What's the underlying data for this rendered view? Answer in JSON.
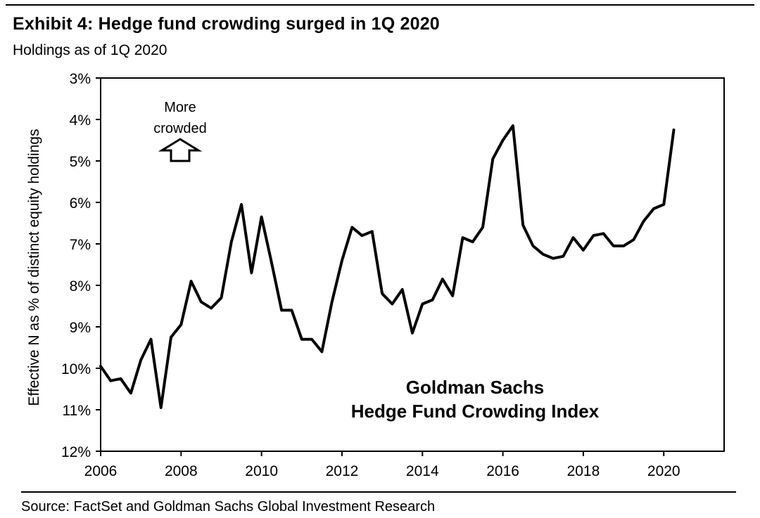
{
  "header": {
    "title": "Exhibit 4: Hedge fund crowding surged in 1Q 2020",
    "subtitle": "Holdings as of 1Q 2020"
  },
  "footer": {
    "source": "Source: FactSet and Goldman Sachs Global Investment Research"
  },
  "chart_data": {
    "type": "line",
    "title": "Exhibit 4: Hedge fund crowding surged in 1Q 2020",
    "subtitle": "Holdings as of 1Q 2020",
    "xlabel": "",
    "ylabel": "Effective N as % of distinct equity holdings",
    "y_inverted": true,
    "ylim": [
      3,
      12
    ],
    "xlim": [
      2006,
      2021.5
    ],
    "grid": false,
    "legend": "none",
    "x_ticks": [
      2006,
      2008,
      2010,
      2012,
      2014,
      2016,
      2018,
      2020
    ],
    "x_tick_labels": [
      "2006",
      "2008",
      "2010",
      "2012",
      "2014",
      "2016",
      "2018",
      "2020"
    ],
    "y_ticks": [
      3,
      4,
      5,
      6,
      7,
      8,
      9,
      10,
      11,
      12
    ],
    "y_tick_labels": [
      "3%",
      "4%",
      "5%",
      "6%",
      "7%",
      "8%",
      "9%",
      "10%",
      "11%",
      "12%"
    ],
    "annotations": {
      "arrow_label_line1": "More",
      "arrow_label_line2": "crowded",
      "index_label_line1": "Goldman Sachs",
      "index_label_line2": "Hedge Fund Crowding Index"
    },
    "series": [
      {
        "name": "Goldman Sachs Hedge Fund Crowding Index",
        "color": "#000000",
        "x": [
          2006.0,
          2006.25,
          2006.5,
          2006.75,
          2007.0,
          2007.25,
          2007.5,
          2007.75,
          2008.0,
          2008.25,
          2008.5,
          2008.75,
          2009.0,
          2009.25,
          2009.5,
          2009.75,
          2010.0,
          2010.25,
          2010.5,
          2010.75,
          2011.0,
          2011.25,
          2011.5,
          2011.75,
          2012.0,
          2012.25,
          2012.5,
          2012.75,
          2013.0,
          2013.25,
          2013.5,
          2013.75,
          2014.0,
          2014.25,
          2014.5,
          2014.75,
          2015.0,
          2015.25,
          2015.5,
          2015.75,
          2016.0,
          2016.25,
          2016.5,
          2016.75,
          2017.0,
          2017.25,
          2017.5,
          2017.75,
          2018.0,
          2018.25,
          2018.5,
          2018.75,
          2019.0,
          2019.25,
          2019.5,
          2019.75,
          2020.0,
          2020.25
        ],
        "y": [
          9.95,
          10.3,
          10.25,
          10.6,
          9.8,
          9.3,
          10.95,
          9.25,
          8.95,
          7.9,
          8.4,
          8.55,
          8.3,
          6.95,
          6.05,
          7.7,
          6.35,
          7.45,
          8.6,
          8.6,
          9.3,
          9.3,
          9.6,
          8.4,
          7.4,
          6.6,
          6.8,
          6.7,
          8.2,
          8.45,
          8.1,
          9.15,
          8.45,
          8.35,
          7.85,
          8.25,
          6.85,
          6.95,
          6.6,
          4.95,
          4.5,
          4.15,
          6.55,
          7.05,
          7.25,
          7.35,
          7.3,
          6.85,
          7.15,
          6.8,
          6.75,
          7.05,
          7.05,
          6.9,
          6.45,
          6.15,
          6.05,
          4.25
        ]
      }
    ]
  }
}
